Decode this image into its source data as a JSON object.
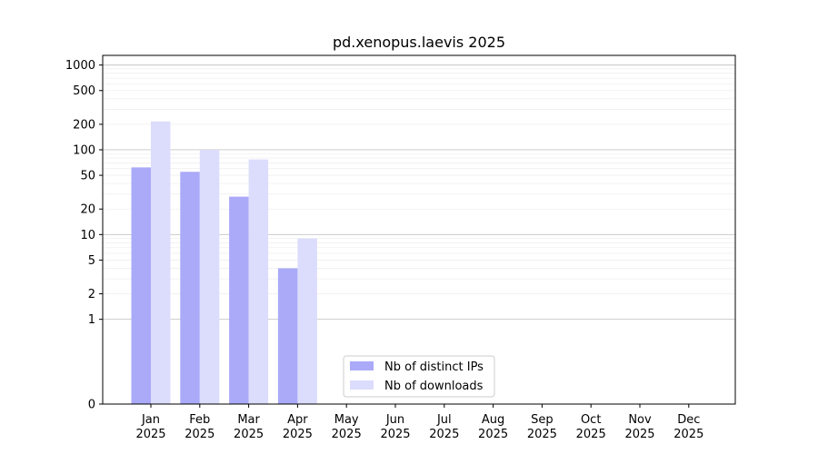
{
  "chart_data": {
    "type": "bar",
    "title": "pd.xenopus.laevis 2025",
    "xlabel": "",
    "ylabel": "",
    "yscale": "symlog",
    "ylim": [
      0,
      1300
    ],
    "y_ticks": [
      {
        "value": 0,
        "label": "0"
      },
      {
        "value": 1,
        "label": "1"
      },
      {
        "value": 2,
        "label": "2"
      },
      {
        "value": 5,
        "label": "5"
      },
      {
        "value": 10,
        "label": "10"
      },
      {
        "value": 20,
        "label": "20"
      },
      {
        "value": 50,
        "label": "50"
      },
      {
        "value": 100,
        "label": "100"
      },
      {
        "value": 200,
        "label": "200"
      },
      {
        "value": 500,
        "label": "500"
      },
      {
        "value": 1000,
        "label": "1000"
      }
    ],
    "categories": [
      {
        "month": "Jan",
        "year": "2025"
      },
      {
        "month": "Feb",
        "year": "2025"
      },
      {
        "month": "Mar",
        "year": "2025"
      },
      {
        "month": "Apr",
        "year": "2025"
      },
      {
        "month": "May",
        "year": "2025"
      },
      {
        "month": "Jun",
        "year": "2025"
      },
      {
        "month": "Jul",
        "year": "2025"
      },
      {
        "month": "Aug",
        "year": "2025"
      },
      {
        "month": "Sep",
        "year": "2025"
      },
      {
        "month": "Oct",
        "year": "2025"
      },
      {
        "month": "Nov",
        "year": "2025"
      },
      {
        "month": "Dec",
        "year": "2025"
      }
    ],
    "series": [
      {
        "name": "Nb of distinct IPs",
        "color": "#aaaaf8",
        "values": [
          62,
          55,
          28,
          4,
          0,
          0,
          0,
          0,
          0,
          0,
          0,
          0
        ]
      },
      {
        "name": "Nb of downloads",
        "color": "#dcdcfc",
        "values": [
          216,
          100,
          77,
          9,
          0,
          0,
          0,
          0,
          0,
          0,
          0,
          0
        ]
      }
    ],
    "grid": true,
    "legend_position": "bottom-center"
  }
}
